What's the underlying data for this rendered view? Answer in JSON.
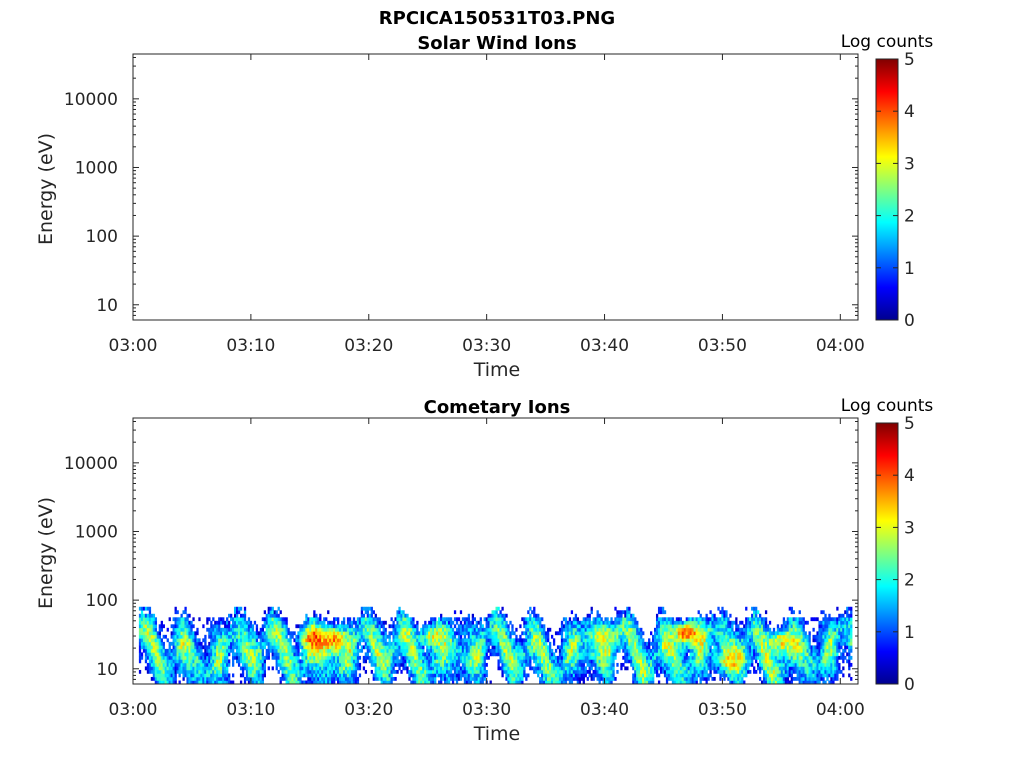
{
  "figure_title": "RPCICA150531T03.PNG",
  "chart_data": [
    {
      "type": "heatmap",
      "title": "Solar Wind Ions",
      "xlabel": "Time",
      "ylabel": "Energy (eV)",
      "x_tick_labels": [
        "03:00",
        "03:10",
        "03:20",
        "03:30",
        "03:40",
        "03:50",
        "04:00"
      ],
      "x_range_minutes_after_0300": [
        0,
        61.5
      ],
      "y_tick_labels": [
        "10",
        "100",
        "1000",
        "10000"
      ],
      "y_scale": "log",
      "y_range_eV": [
        6,
        45000
      ],
      "colorbar": {
        "label": "Log counts",
        "ticks": [
          "0",
          "1",
          "2",
          "3",
          "4",
          "5"
        ],
        "range": [
          0,
          5
        ],
        "colormap": "jet"
      },
      "grid": false,
      "data": "empty"
    },
    {
      "type": "heatmap",
      "title": "Cometary Ions",
      "xlabel": "Time",
      "ylabel": "Energy (eV)",
      "x_tick_labels": [
        "03:00",
        "03:10",
        "03:20",
        "03:30",
        "03:40",
        "03:50",
        "04:00"
      ],
      "x_range_minutes_after_0300": [
        0,
        61.5
      ],
      "y_tick_labels": [
        "10",
        "100",
        "1000",
        "10000"
      ],
      "y_scale": "log",
      "y_range_eV": [
        6,
        45000
      ],
      "colorbar": {
        "label": "Log counts",
        "ticks": [
          "0",
          "1",
          "2",
          "3",
          "4",
          "5"
        ],
        "range": [
          0,
          5
        ],
        "colormap": "jet"
      },
      "grid": false,
      "signal_energy_range_eV": [
        6,
        80
      ],
      "signal_time_range_minutes": [
        0.5,
        61
      ],
      "hotspots": [
        {
          "t_min": 15.5,
          "energy_eV": 28,
          "log_counts": 3.9
        },
        {
          "t_min": 17.0,
          "energy_eV": 26,
          "log_counts": 3.6
        },
        {
          "t_min": 47.0,
          "energy_eV": 33,
          "log_counts": 4.0
        },
        {
          "t_min": 50.8,
          "energy_eV": 13,
          "log_counts": 3.2
        },
        {
          "t_min": 25.5,
          "energy_eV": 30,
          "log_counts": 3.0
        },
        {
          "t_min": 40.0,
          "energy_eV": 30,
          "log_counts": 3.0
        },
        {
          "t_min": 55.0,
          "energy_eV": 25,
          "log_counts": 3.2
        }
      ]
    }
  ]
}
